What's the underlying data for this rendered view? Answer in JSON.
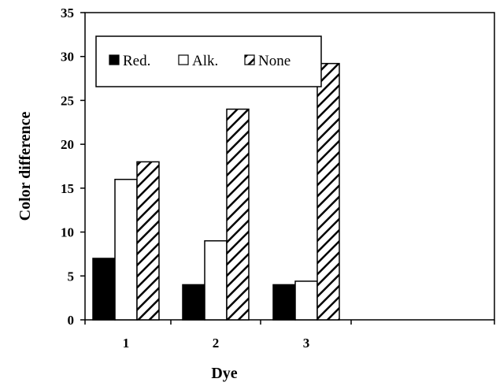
{
  "chart_data": {
    "type": "bar",
    "title": "",
    "xlabel": "Dye",
    "ylabel": "Color difference",
    "categories": [
      "1",
      "2",
      "3"
    ],
    "ylim": [
      0,
      35
    ],
    "yticks": [
      "0",
      "5",
      "10",
      "15",
      "20",
      "25",
      "30",
      "35"
    ],
    "grid": false,
    "legend_position": "top-left",
    "series": [
      {
        "name": "Red.",
        "values": [
          7,
          4,
          4
        ],
        "color": "#000000",
        "fill": "solid"
      },
      {
        "name": "Alk.",
        "values": [
          16,
          9,
          4.4
        ],
        "color": "#ffffff",
        "fill": "solid"
      },
      {
        "name": "None",
        "values": [
          18,
          24,
          29.2
        ],
        "color": "#000000",
        "fill": "diagonal-hatch"
      }
    ]
  }
}
